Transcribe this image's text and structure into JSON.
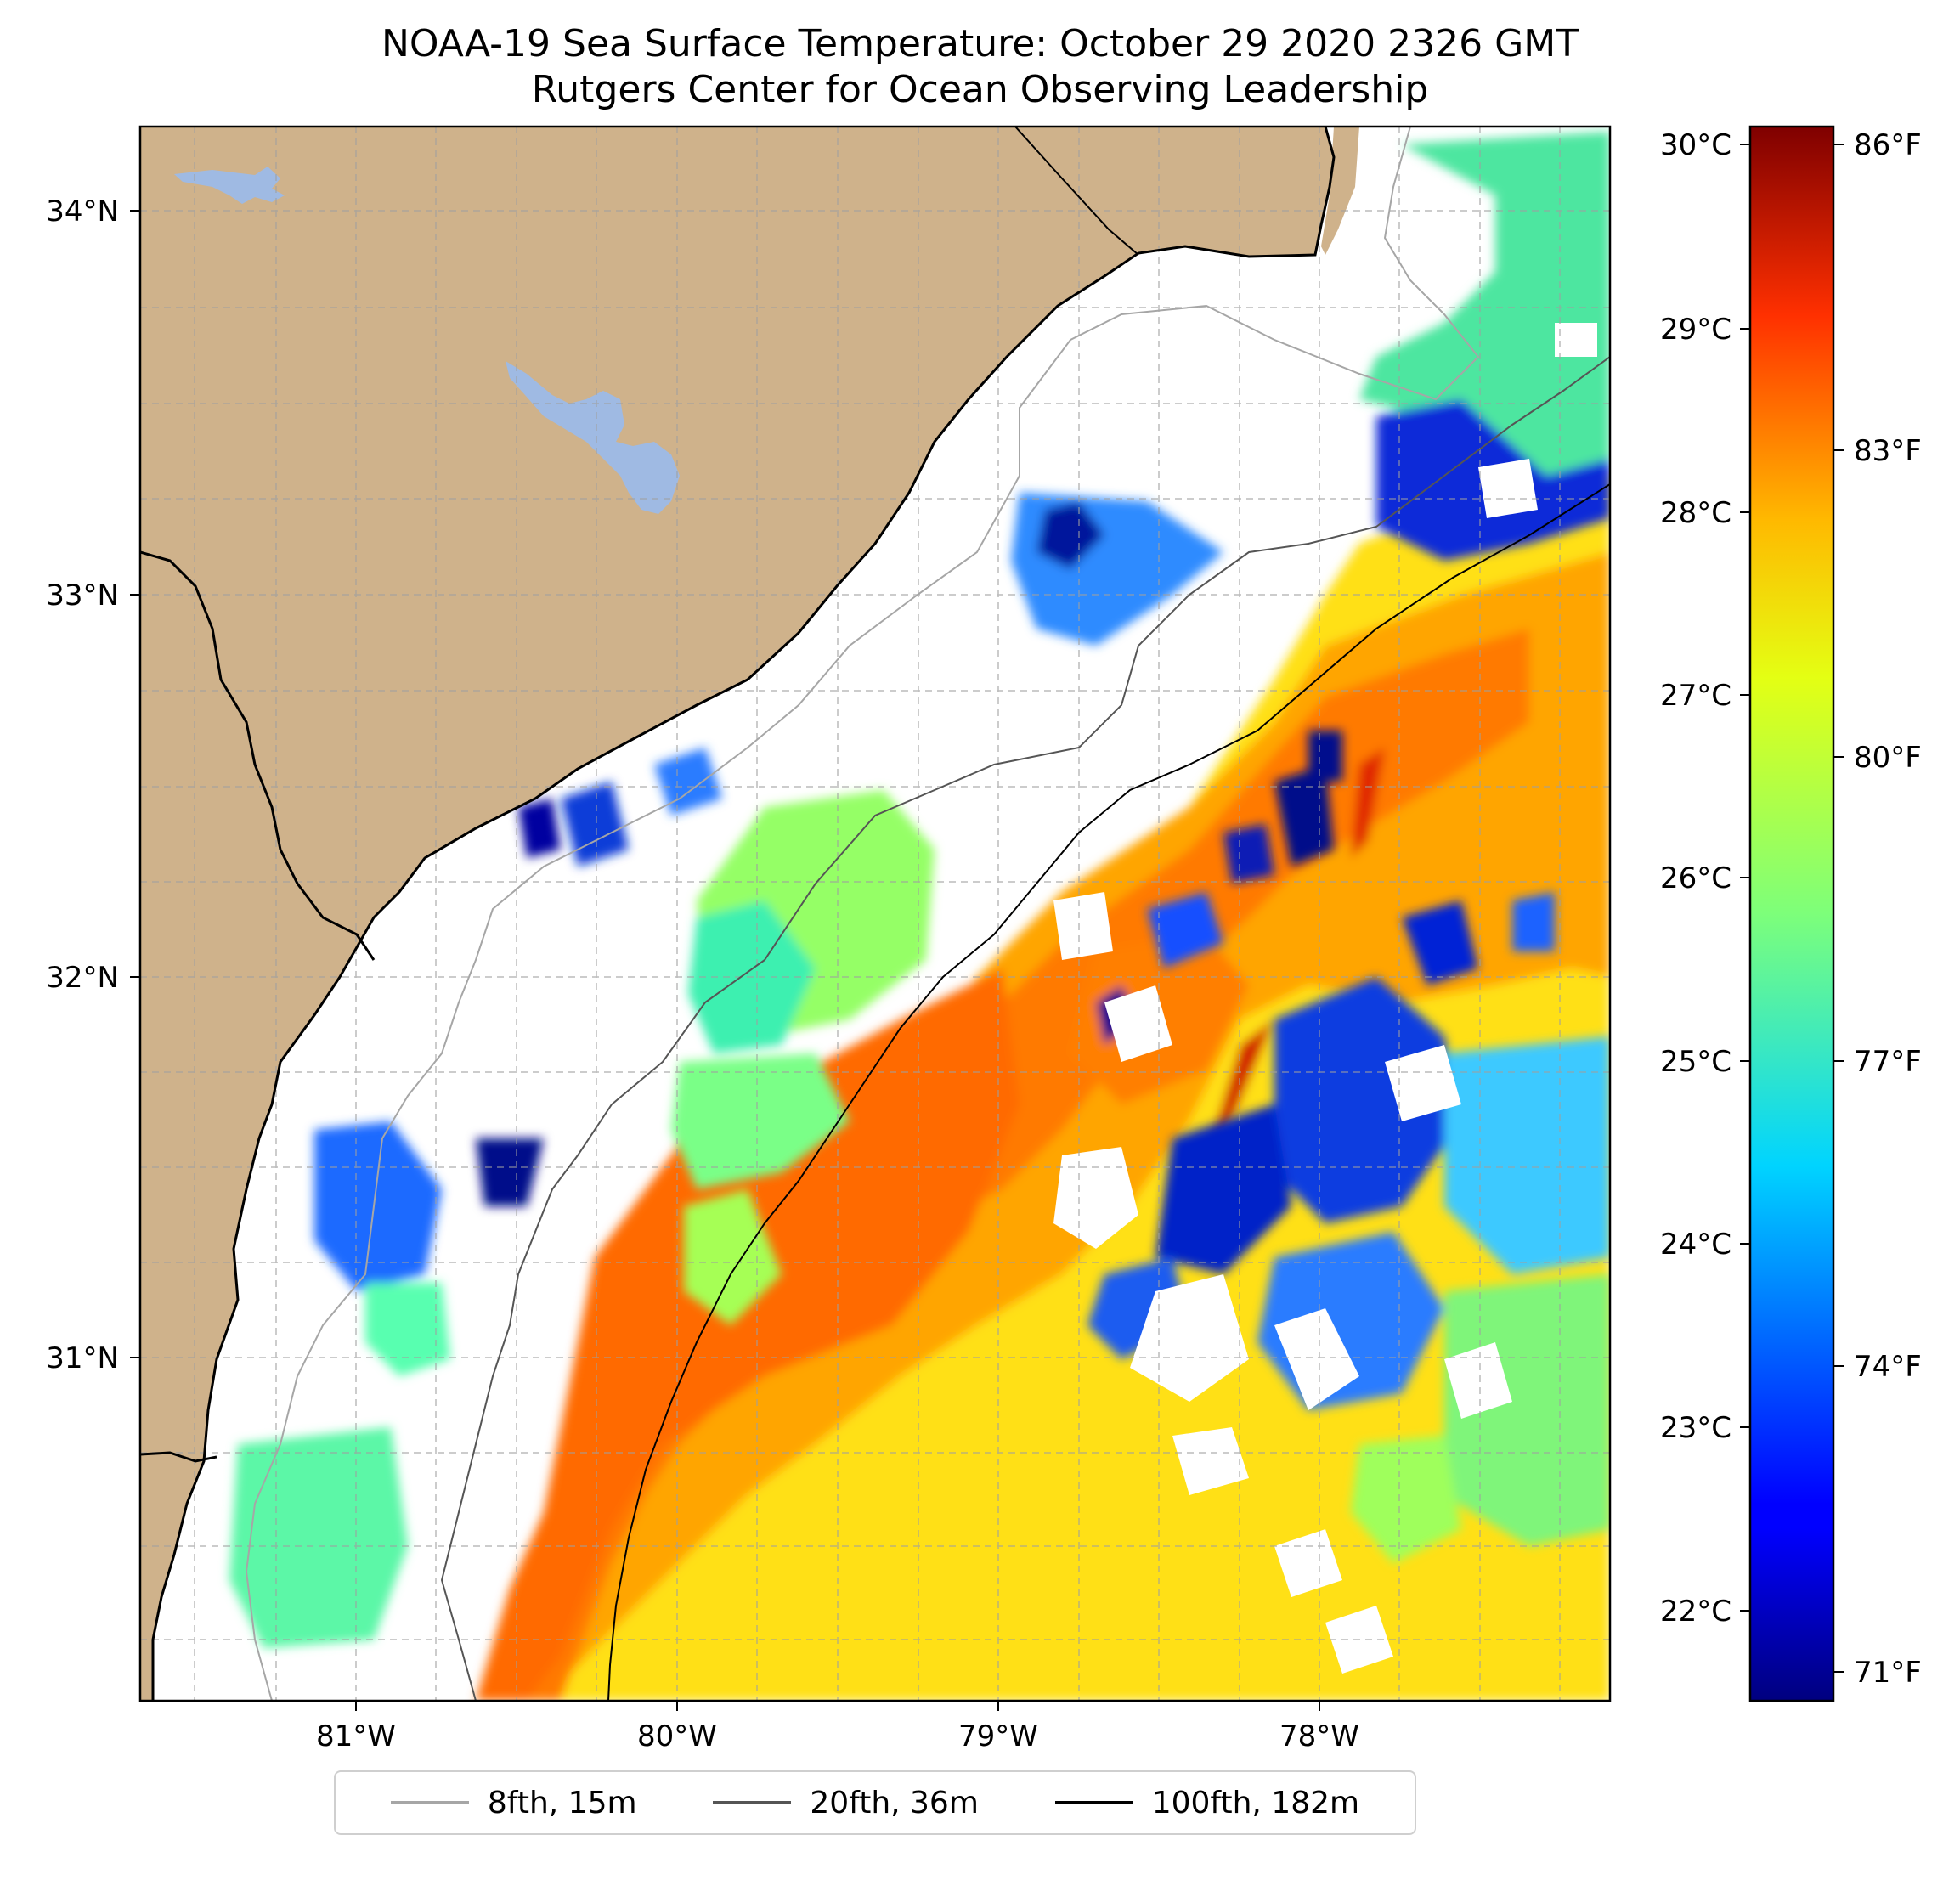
{
  "title": "NOAA-19 Sea Surface Temperature: October 29 2020 2326 GMT",
  "subtitle": "Rutgers Center for Ocean Observing Leadership",
  "map": {
    "lat_ticks": [
      "34°N",
      "33°N",
      "32°N",
      "31°N"
    ],
    "lon_ticks": [
      "81°W",
      "80°W",
      "79°W",
      "78°W"
    ],
    "extent": {
      "lon_min": -81.68,
      "lon_max": -77.12,
      "lat_min": 30.07,
      "lat_max": 34.22
    },
    "land_color": "#cfb28b",
    "lake_color": "#9fbae3",
    "gridlines": true
  },
  "colorbar": {
    "colormap": "jet",
    "celsius_ticks": [
      "30°C",
      "29°C",
      "28°C",
      "27°C",
      "26°C",
      "25°C",
      "24°C",
      "23°C",
      "22°C"
    ],
    "fahrenheit_ticks": [
      "86°F",
      "83°F",
      "80°F",
      "77°F",
      "74°F",
      "71°F"
    ],
    "range_f": [
      70.5,
      86.5
    ]
  },
  "legend": {
    "items": [
      {
        "label": "8fth, 15m",
        "color": "#a6a6a6"
      },
      {
        "label": "20fth, 36m",
        "color": "#555555"
      },
      {
        "label": "100fth, 182m",
        "color": "#000000"
      }
    ]
  }
}
